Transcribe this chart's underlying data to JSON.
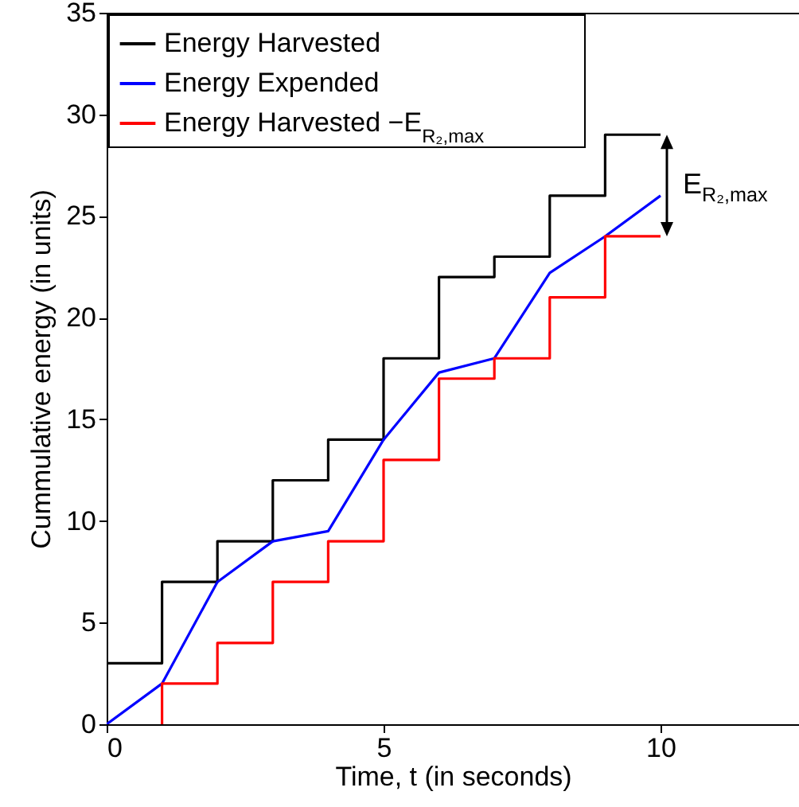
{
  "chart_data": {
    "type": "line",
    "xlabel": "Time, t (in seconds)",
    "ylabel": "Cummulative energy (in units)",
    "xlim": [
      0,
      12.5
    ],
    "ylim": [
      0,
      35
    ],
    "xticks": [
      0,
      5,
      10
    ],
    "yticks": [
      0,
      5,
      10,
      15,
      20,
      25,
      30,
      35
    ],
    "grid": false,
    "legend": "top left",
    "series": [
      {
        "name": "Energy Harvested",
        "type": "step",
        "color": "#000000",
        "x": [
          0,
          1,
          2,
          3,
          4,
          5,
          6,
          7,
          8,
          9,
          10
        ],
        "values": [
          3,
          7,
          9,
          12,
          14,
          18,
          22,
          23,
          26,
          29,
          29
        ]
      },
      {
        "name": "Energy Expended",
        "type": "line",
        "color": "#0000ff",
        "x": [
          0,
          1,
          2,
          3,
          4,
          5,
          6,
          7,
          8,
          9,
          10
        ],
        "values": [
          0,
          2,
          7,
          9,
          9.5,
          14,
          17.3,
          18,
          22.2,
          24,
          26
        ]
      },
      {
        "name": "Energy Harvested −E$_{R₂,max}$",
        "type": "step",
        "color": "#ff0000",
        "x": [
          1,
          1,
          2,
          3,
          4,
          5,
          6,
          7,
          8,
          9,
          10
        ],
        "values": [
          0,
          2,
          4,
          7,
          9,
          13,
          17,
          18,
          21,
          24,
          24
        ]
      }
    ],
    "annotations": [
      "E$_{R₂,max}$"
    ]
  }
}
